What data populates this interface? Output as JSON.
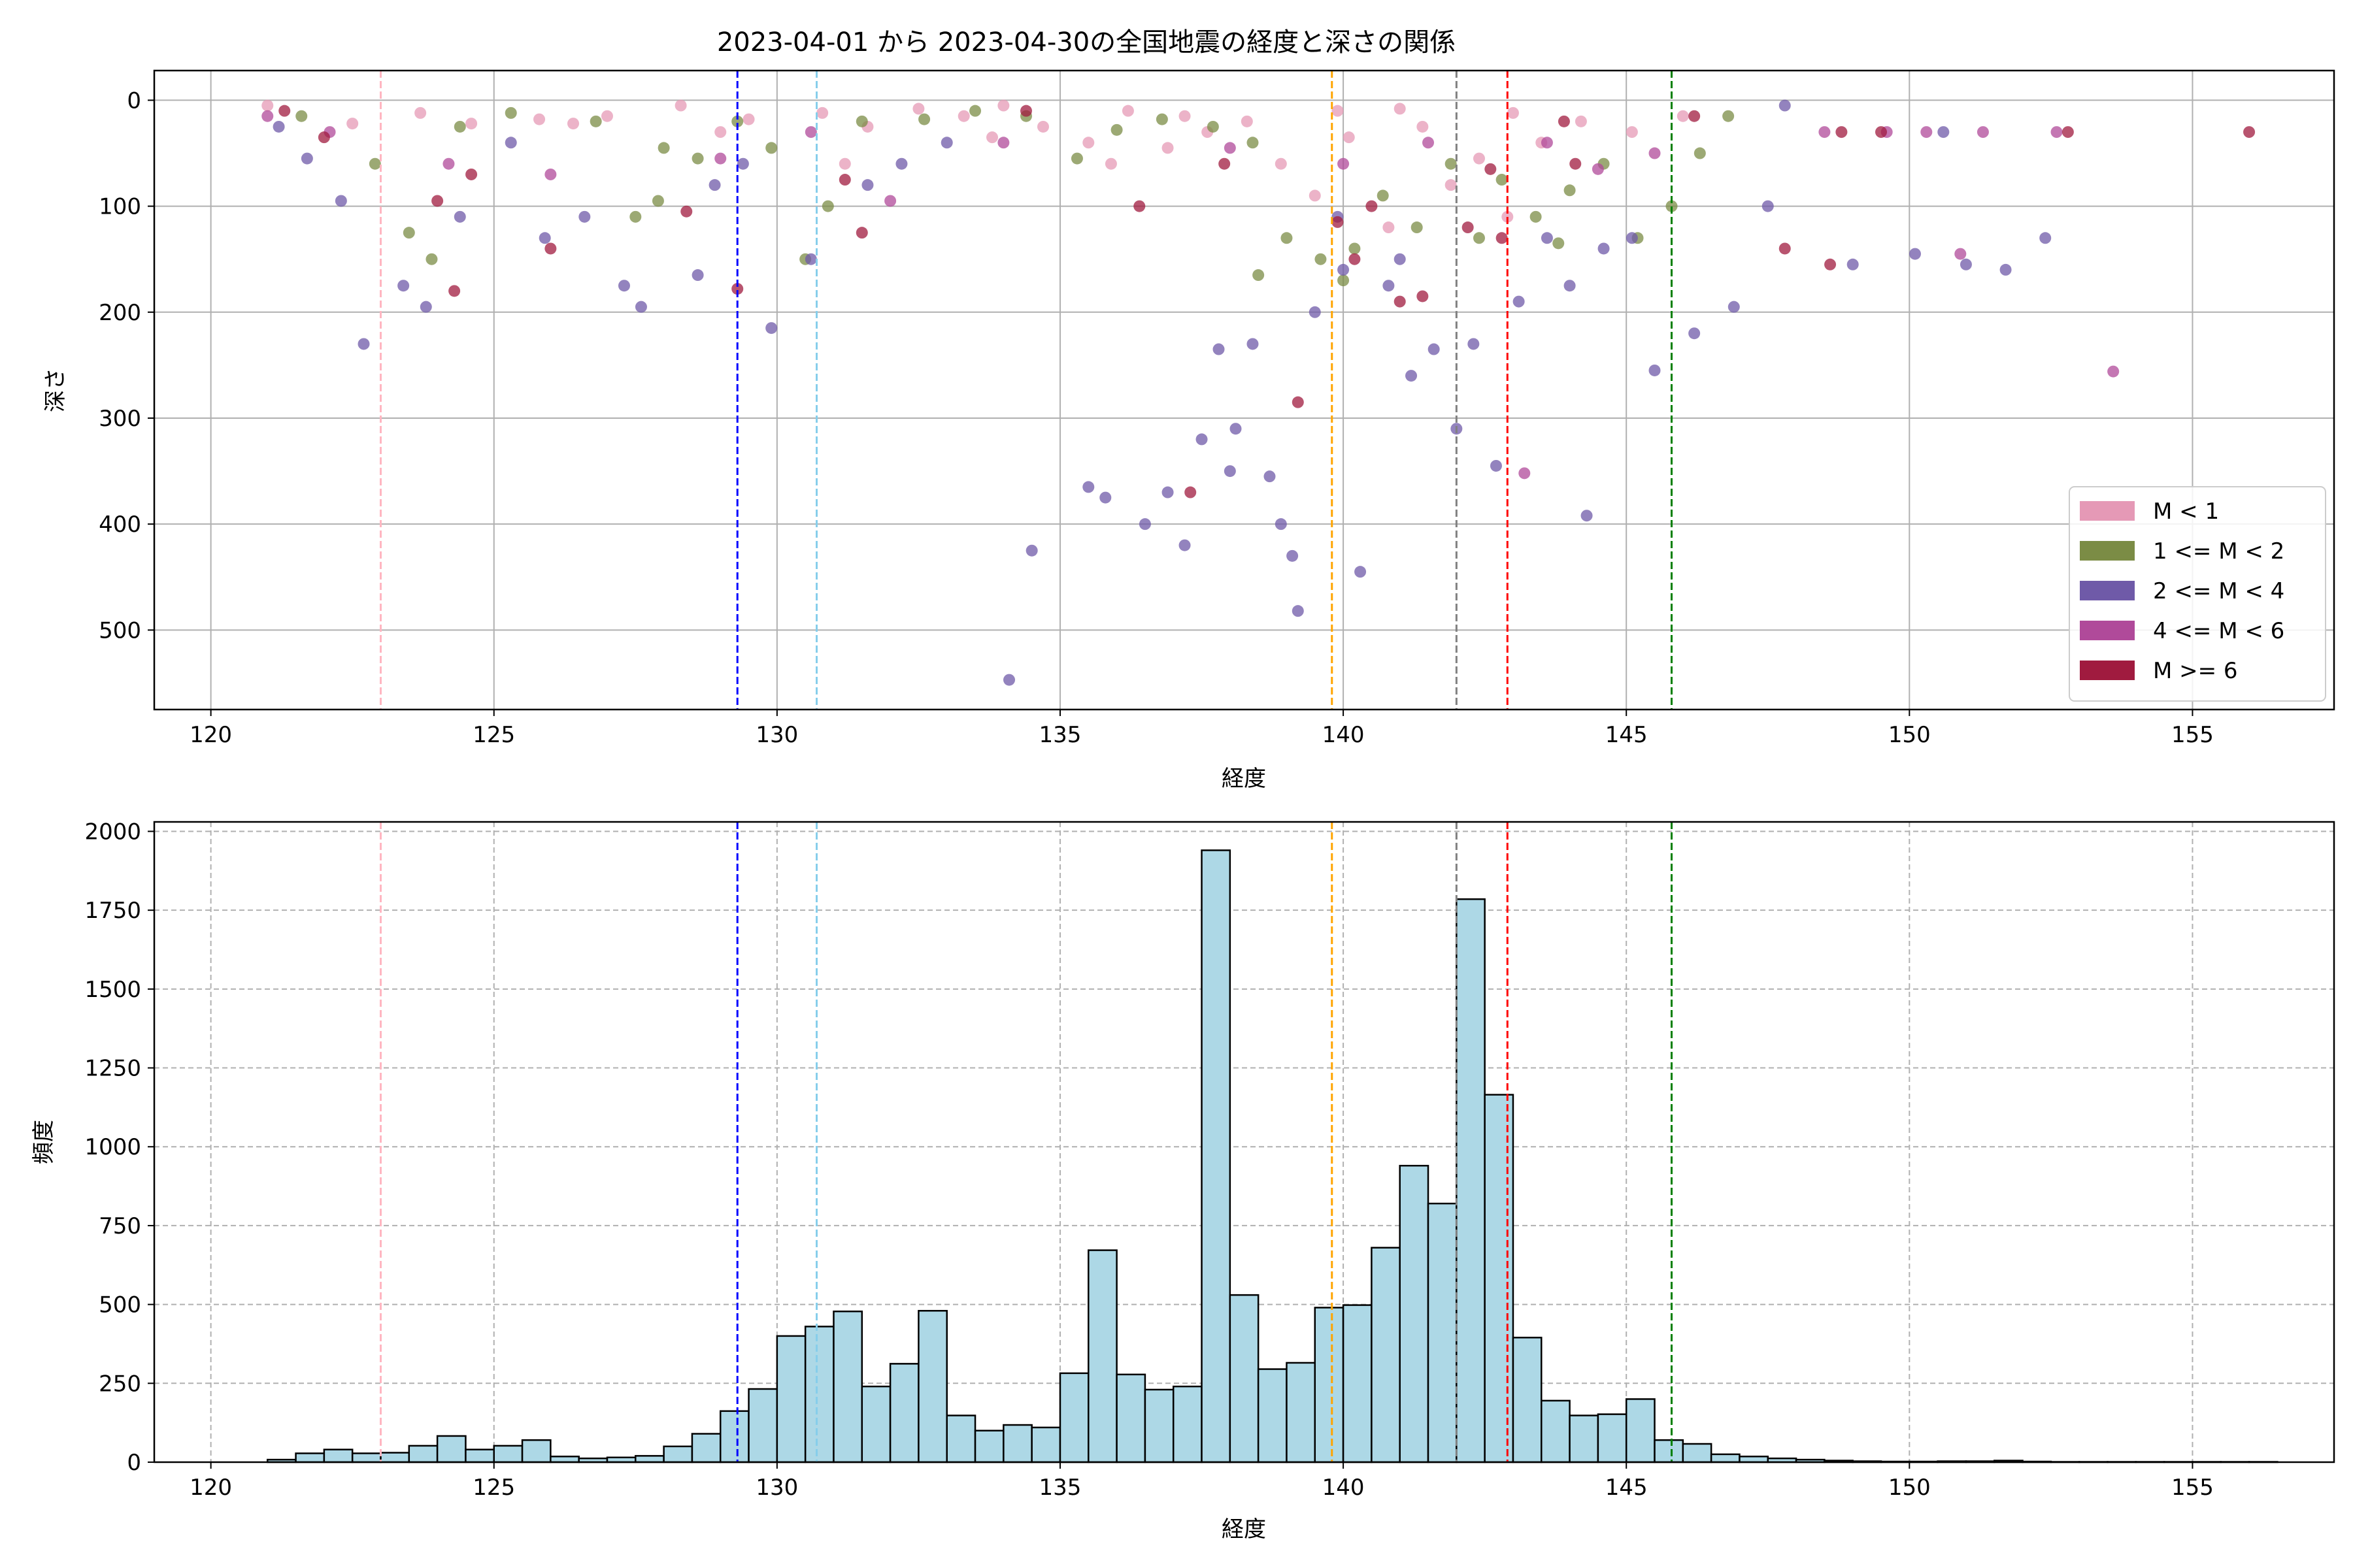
{
  "chart_data": [
    {
      "type": "scatter",
      "title": "2023-04-01 から 2023-04-30の全国地震の経度と深さの関係",
      "xlabel": "経度",
      "ylabel": "深さ",
      "xlim": [
        119,
        157.5
      ],
      "ylim": [
        575,
        -28
      ],
      "y_inverted": true,
      "xticks": [
        120,
        125,
        130,
        135,
        140,
        145,
        150,
        155
      ],
      "yticks": [
        0,
        100,
        200,
        300,
        400,
        500
      ],
      "grid": true,
      "legend_position": "lower right",
      "series": [
        {
          "name": "M < 1",
          "color": "#e599b6",
          "points": [
            [
              121.0,
              5
            ],
            [
              122.5,
              22
            ],
            [
              123.7,
              12
            ],
            [
              124.6,
              22
            ],
            [
              125.8,
              18
            ],
            [
              127.0,
              15
            ],
            [
              128.3,
              5
            ],
            [
              129.5,
              18
            ],
            [
              130.8,
              12
            ],
            [
              131.6,
              25
            ],
            [
              132.5,
              8
            ],
            [
              133.3,
              15
            ],
            [
              134.0,
              5
            ],
            [
              134.7,
              25
            ],
            [
              135.5,
              40
            ],
            [
              136.2,
              10
            ],
            [
              136.9,
              45
            ],
            [
              137.6,
              30
            ],
            [
              138.3,
              20
            ],
            [
              138.9,
              60
            ],
            [
              139.5,
              90
            ],
            [
              140.1,
              35
            ],
            [
              140.8,
              120
            ],
            [
              141.4,
              25
            ],
            [
              141.9,
              80
            ],
            [
              142.4,
              55
            ],
            [
              142.9,
              110
            ],
            [
              143.5,
              40
            ],
            [
              144.2,
              20
            ],
            [
              145.1,
              30
            ],
            [
              146.0,
              15
            ],
            [
              131.2,
              60
            ],
            [
              133.8,
              35
            ],
            [
              135.9,
              60
            ],
            [
              137.2,
              15
            ],
            [
              139.9,
              10
            ],
            [
              141.0,
              8
            ],
            [
              143.0,
              12
            ],
            [
              129.0,
              30
            ],
            [
              126.4,
              22
            ]
          ]
        },
        {
          "name": "1 <= M < 2",
          "color": "#7b8c45",
          "points": [
            [
              121.6,
              15
            ],
            [
              122.9,
              60
            ],
            [
              123.5,
              125
            ],
            [
              123.9,
              150
            ],
            [
              124.4,
              25
            ],
            [
              125.3,
              12
            ],
            [
              126.8,
              20
            ],
            [
              127.9,
              95
            ],
            [
              128.6,
              55
            ],
            [
              129.3,
              20
            ],
            [
              129.9,
              45
            ],
            [
              130.5,
              150
            ],
            [
              130.9,
              100
            ],
            [
              131.5,
              20
            ],
            [
              132.6,
              18
            ],
            [
              133.5,
              10
            ],
            [
              134.4,
              15
            ],
            [
              135.3,
              55
            ],
            [
              136.0,
              28
            ],
            [
              136.8,
              18
            ],
            [
              137.7,
              25
            ],
            [
              138.4,
              40
            ],
            [
              139.0,
              130
            ],
            [
              139.6,
              150
            ],
            [
              140.2,
              140
            ],
            [
              140.7,
              90
            ],
            [
              141.3,
              120
            ],
            [
              141.9,
              60
            ],
            [
              142.4,
              130
            ],
            [
              142.8,
              75
            ],
            [
              143.4,
              110
            ],
            [
              144.0,
              85
            ],
            [
              144.6,
              60
            ],
            [
              145.2,
              130
            ],
            [
              145.8,
              100
            ],
            [
              146.3,
              50
            ],
            [
              146.8,
              15
            ],
            [
              140.0,
              170
            ],
            [
              138.5,
              165
            ],
            [
              143.8,
              135
            ],
            [
              128.0,
              45
            ],
            [
              127.5,
              110
            ]
          ]
        },
        {
          "name": "2 <= M < 4",
          "color": "#6f5aa8",
          "points": [
            [
              121.2,
              25
            ],
            [
              121.7,
              55
            ],
            [
              122.3,
              95
            ],
            [
              122.7,
              230
            ],
            [
              123.4,
              175
            ],
            [
              123.8,
              195
            ],
            [
              124.4,
              110
            ],
            [
              125.3,
              40
            ],
            [
              125.9,
              130
            ],
            [
              126.6,
              110
            ],
            [
              127.3,
              175
            ],
            [
              127.6,
              195
            ],
            [
              128.6,
              165
            ],
            [
              128.9,
              80
            ],
            [
              129.4,
              60
            ],
            [
              129.9,
              215
            ],
            [
              130.6,
              150
            ],
            [
              131.6,
              80
            ],
            [
              132.2,
              60
            ],
            [
              133.0,
              40
            ],
            [
              134.1,
              547
            ],
            [
              134.5,
              425
            ],
            [
              135.5,
              365
            ],
            [
              135.8,
              375
            ],
            [
              136.5,
              400
            ],
            [
              136.9,
              370
            ],
            [
              137.2,
              420
            ],
            [
              137.5,
              320
            ],
            [
              137.8,
              235
            ],
            [
              138.0,
              350
            ],
            [
              138.4,
              230
            ],
            [
              138.7,
              355
            ],
            [
              138.9,
              400
            ],
            [
              139.1,
              430
            ],
            [
              139.2,
              482
            ],
            [
              139.5,
              200
            ],
            [
              139.9,
              110
            ],
            [
              140.3,
              445
            ],
            [
              140.8,
              175
            ],
            [
              141.2,
              260
            ],
            [
              141.6,
              235
            ],
            [
              142.0,
              310
            ],
            [
              142.3,
              230
            ],
            [
              142.7,
              345
            ],
            [
              143.1,
              190
            ],
            [
              143.6,
              130
            ],
            [
              144.0,
              175
            ],
            [
              144.3,
              392
            ],
            [
              144.6,
              140
            ],
            [
              145.1,
              130
            ],
            [
              145.5,
              255
            ],
            [
              146.2,
              220
            ],
            [
              146.9,
              195
            ],
            [
              147.5,
              100
            ],
            [
              147.8,
              5
            ],
            [
              149.0,
              155
            ],
            [
              150.1,
              145
            ],
            [
              150.6,
              30
            ],
            [
              151.0,
              155
            ],
            [
              151.7,
              160
            ],
            [
              152.4,
              130
            ],
            [
              140.0,
              160
            ],
            [
              141.0,
              150
            ],
            [
              138.1,
              310
            ]
          ]
        },
        {
          "name": "4 <= M < 6",
          "color": "#b04a9a",
          "points": [
            [
              121.0,
              15
            ],
            [
              122.1,
              30
            ],
            [
              124.2,
              60
            ],
            [
              126.0,
              70
            ],
            [
              129.0,
              55
            ],
            [
              130.6,
              30
            ],
            [
              132.0,
              95
            ],
            [
              134.0,
              40
            ],
            [
              138.0,
              45
            ],
            [
              140.0,
              60
            ],
            [
              141.5,
              40
            ],
            [
              143.2,
              352
            ],
            [
              143.6,
              40
            ],
            [
              144.5,
              65
            ],
            [
              145.5,
              50
            ],
            [
              148.5,
              30
            ],
            [
              149.6,
              30
            ],
            [
              150.3,
              30
            ],
            [
              150.9,
              145
            ],
            [
              152.6,
              30
            ],
            [
              153.6,
              256
            ],
            [
              151.3,
              30
            ]
          ]
        },
        {
          "name": "M >= 6",
          "color": "#a01b3f",
          "points": [
            [
              121.3,
              10
            ],
            [
              122.0,
              35
            ],
            [
              124.0,
              95
            ],
            [
              124.3,
              180
            ],
            [
              124.6,
              70
            ],
            [
              126.0,
              140
            ],
            [
              128.4,
              105
            ],
            [
              129.3,
              178
            ],
            [
              131.2,
              75
            ],
            [
              131.5,
              125
            ],
            [
              134.4,
              10
            ],
            [
              136.4,
              100
            ],
            [
              137.3,
              370
            ],
            [
              137.9,
              60
            ],
            [
              139.2,
              285
            ],
            [
              139.9,
              115
            ],
            [
              140.5,
              100
            ],
            [
              141.0,
              190
            ],
            [
              141.4,
              185
            ],
            [
              142.2,
              120
            ],
            [
              142.8,
              130
            ],
            [
              143.9,
              20
            ],
            [
              144.1,
              60
            ],
            [
              146.2,
              15
            ],
            [
              147.8,
              140
            ],
            [
              148.6,
              155
            ],
            [
              148.8,
              30
            ],
            [
              149.5,
              30
            ],
            [
              152.8,
              30
            ],
            [
              156.0,
              30
            ],
            [
              140.2,
              150
            ],
            [
              142.6,
              65
            ]
          ]
        }
      ],
      "vlines": [
        {
          "x": 123.0,
          "color": "#ffb6c1"
        },
        {
          "x": 129.3,
          "color": "#0000ff"
        },
        {
          "x": 130.7,
          "color": "#87ceeb"
        },
        {
          "x": 139.8,
          "color": "#ffa500"
        },
        {
          "x": 142.0,
          "color": "#808080"
        },
        {
          "x": 142.9,
          "color": "#ff0000"
        },
        {
          "x": 145.8,
          "color": "#008000"
        }
      ]
    },
    {
      "type": "bar",
      "title": "",
      "xlabel": "経度",
      "ylabel": "頻度",
      "xlim": [
        119,
        157.5
      ],
      "ylim": [
        0,
        2030
      ],
      "xticks": [
        120,
        125,
        130,
        135,
        140,
        145,
        150,
        155
      ],
      "yticks": [
        0,
        250,
        500,
        750,
        1000,
        1250,
        1500,
        1750,
        2000
      ],
      "grid": true,
      "grid_style": "dashed",
      "bar_color": "#add8e6",
      "edge_color": "#000000",
      "bin_start": 120.5,
      "bin_width": 0.5,
      "values": [
        0,
        8,
        28,
        40,
        28,
        30,
        52,
        83,
        40,
        52,
        70,
        18,
        12,
        15,
        20,
        50,
        90,
        162,
        232,
        400,
        430,
        478,
        240,
        312,
        480,
        148,
        100,
        118,
        110,
        282,
        672,
        278,
        230,
        240,
        1940,
        530,
        295,
        315,
        490,
        498,
        680,
        940,
        820,
        1785,
        1165,
        395,
        195,
        148,
        152,
        200,
        70,
        58,
        25,
        18,
        12,
        8,
        5,
        3,
        2,
        2,
        3,
        3,
        5,
        2,
        1,
        1,
        1,
        1,
        1,
        1,
        1,
        1
      ]
    }
  ]
}
